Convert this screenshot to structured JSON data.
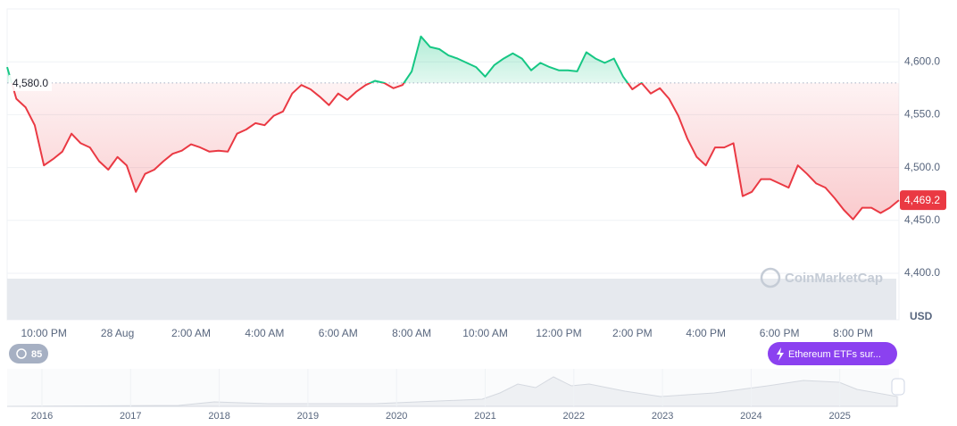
{
  "chart_data": {
    "type": "line",
    "categories": [
      null,
      null,
      null,
      null,
      "10:00 PM",
      null,
      null,
      null,
      null,
      null,
      null,
      null,
      "28 Aug",
      null,
      null,
      null,
      null,
      null,
      null,
      null,
      "2:00 AM",
      null,
      null,
      null,
      null,
      null,
      null,
      null,
      "4:00 AM",
      null,
      null,
      null,
      null,
      null,
      null,
      null,
      "6:00 AM",
      null,
      null,
      null,
      null,
      null,
      null,
      null,
      "8:00 AM",
      null,
      null,
      null,
      null,
      null,
      null,
      null,
      "10:00 AM",
      null,
      null,
      null,
      null,
      null,
      null,
      null,
      "12:00 PM",
      null,
      null,
      null,
      null,
      null,
      null,
      null,
      "2:00 PM",
      null,
      null,
      null,
      null,
      null,
      null,
      null,
      "4:00 PM",
      null,
      null,
      null,
      null,
      null,
      null,
      null,
      "6:00 PM",
      null,
      null,
      null,
      null,
      null,
      null,
      null,
      "8:00 PM",
      null,
      null,
      null,
      null,
      null
    ],
    "values": [
      4595,
      4565,
      4557,
      4540,
      4502,
      4508,
      4515,
      4532,
      4523,
      4519,
      4506,
      4498,
      4510,
      4502,
      4477,
      4494,
      4498,
      4506,
      4513,
      4516,
      4522,
      4519,
      4515,
      4516,
      4515,
      4532,
      4536,
      4542,
      4540,
      4549,
      4553,
      4570,
      4578,
      4574,
      4567,
      4559,
      4570,
      4564,
      4572,
      4578,
      4582,
      4580,
      4575,
      4578,
      4591,
      4624,
      4614,
      4612,
      4606,
      4603,
      4599,
      4595,
      4586,
      4597,
      4603,
      4608,
      4603,
      4592,
      4599,
      4595,
      4592,
      4592,
      4591,
      4609,
      4603,
      4599,
      4603,
      4586,
      4574,
      4580,
      4570,
      4575,
      4565,
      4549,
      4527,
      4510,
      4502,
      4519,
      4519,
      4523,
      4473,
      4477,
      4489,
      4489,
      4485,
      4481,
      4502,
      4494,
      4485,
      4481,
      4471,
      4460,
      4451,
      4462,
      4462,
      4457,
      4462,
      4469.2
    ],
    "color_up": "#16c784",
    "color_down": "#ea3943",
    "baseline": {
      "value": 4580,
      "label": "4,580.0"
    },
    "last_value_label": "4,469.2",
    "ylim": [
      4400,
      4650
    ],
    "yticks": [
      {
        "value": 4400,
        "label": "4,400.0"
      },
      {
        "value": 4450,
        "label": "4,450.0"
      },
      {
        "value": 4500,
        "label": "4,500.0"
      },
      {
        "value": 4550,
        "label": "4,550.0"
      },
      {
        "value": 4600,
        "label": "4,600.0"
      }
    ],
    "unit": "USD",
    "grid": true
  },
  "watermark": "CoinMarketCap",
  "navigator": {
    "years": [
      "2016",
      "2017",
      "2018",
      "2019",
      "2020",
      "2021",
      "2022",
      "2023",
      "2024",
      "2025"
    ],
    "badge": "85",
    "event": "Ethereum ETFs sur..."
  }
}
